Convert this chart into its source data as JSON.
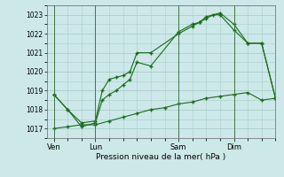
{
  "bg_color": "#cce8e8",
  "grid_color": "#aacccc",
  "line_color": "#1a6b1a",
  "xlabel": "Pression niveau de la mer( hPa )",
  "ylim": [
    1016.5,
    1023.5
  ],
  "yticks": [
    1017,
    1018,
    1019,
    1020,
    1021,
    1022,
    1023
  ],
  "xtick_labels": [
    "Ven",
    "Lun",
    "Sam",
    "Dim"
  ],
  "xtick_positions": [
    0,
    24,
    72,
    104
  ],
  "vlines": [
    0,
    24,
    72,
    104
  ],
  "xlim": [
    -4,
    128
  ],
  "line1_x": [
    0,
    8,
    16,
    24,
    28,
    32,
    36,
    40,
    44,
    48,
    56,
    72,
    80,
    84,
    88,
    92,
    96,
    104,
    112,
    120,
    128
  ],
  "line1_y": [
    1018.8,
    1018.0,
    1017.1,
    1017.3,
    1018.5,
    1018.8,
    1019.0,
    1019.3,
    1019.6,
    1020.5,
    1020.3,
    1022.1,
    1022.5,
    1022.6,
    1022.8,
    1023.0,
    1023.0,
    1022.2,
    1021.5,
    1021.5,
    1018.6
  ],
  "line2_x": [
    0,
    8,
    16,
    24,
    28,
    32,
    36,
    40,
    44,
    48,
    56,
    72,
    80,
    84,
    88,
    96,
    104,
    112,
    120,
    128
  ],
  "line2_y": [
    1018.8,
    1018.0,
    1017.3,
    1017.4,
    1019.0,
    1019.6,
    1019.7,
    1019.8,
    1020.0,
    1021.0,
    1021.0,
    1022.0,
    1022.4,
    1022.6,
    1022.9,
    1023.1,
    1022.5,
    1021.5,
    1021.5,
    1018.6
  ],
  "line3_x": [
    0,
    8,
    16,
    24,
    32,
    40,
    48,
    56,
    64,
    72,
    80,
    88,
    96,
    104,
    112,
    120,
    128
  ],
  "line3_y": [
    1017.0,
    1017.1,
    1017.2,
    1017.2,
    1017.4,
    1017.6,
    1017.8,
    1018.0,
    1018.1,
    1018.3,
    1018.4,
    1018.6,
    1018.7,
    1018.8,
    1018.9,
    1018.5,
    1018.6
  ]
}
